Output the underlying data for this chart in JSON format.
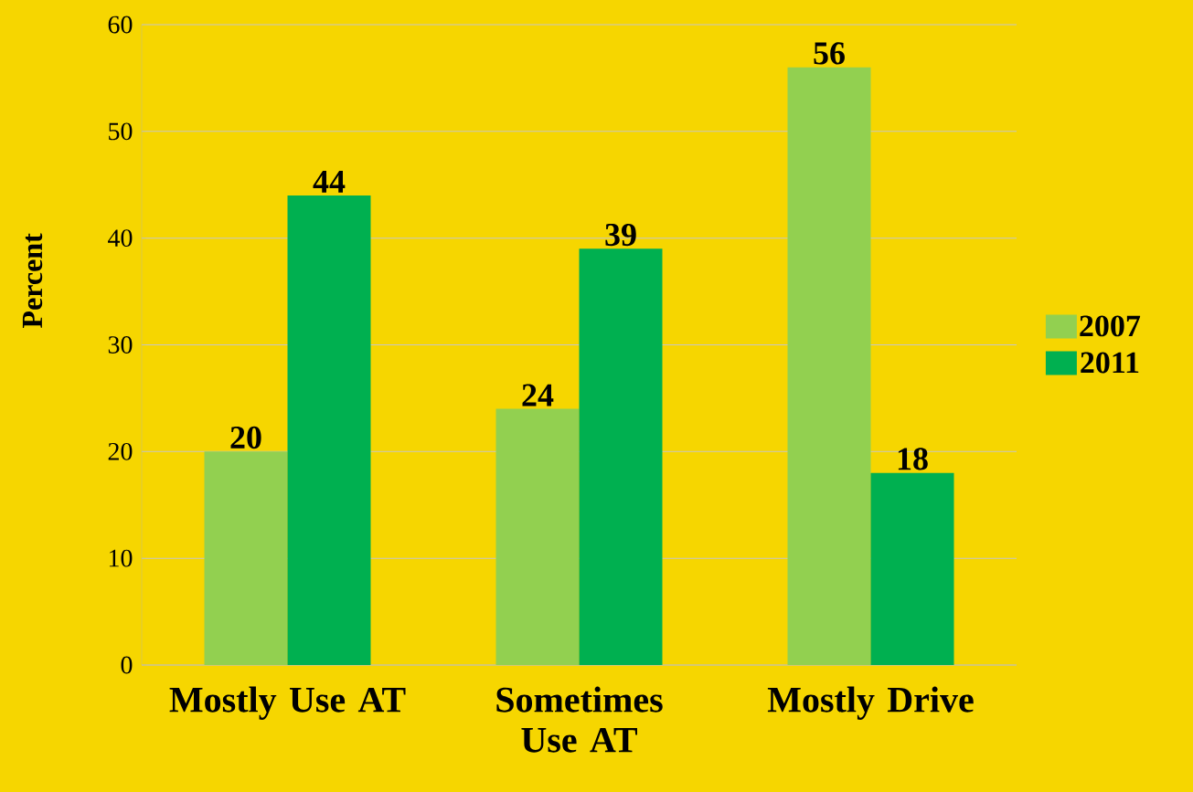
{
  "chart_data": {
    "type": "bar",
    "ylabel": "Percent",
    "categories": [
      "Mostly Use AT",
      "Sometimes Use AT",
      "Mostly Drive"
    ],
    "series": [
      {
        "name": "2007",
        "color": "#92d050",
        "values": [
          20,
          24,
          56
        ]
      },
      {
        "name": "2011",
        "color": "#00b050",
        "values": [
          44,
          39,
          18
        ]
      }
    ],
    "ylim": [
      0,
      60
    ],
    "yticks": [
      0,
      10,
      20,
      30,
      40,
      50,
      60
    ],
    "grid": "y",
    "legend": "right",
    "data_labels": true
  }
}
